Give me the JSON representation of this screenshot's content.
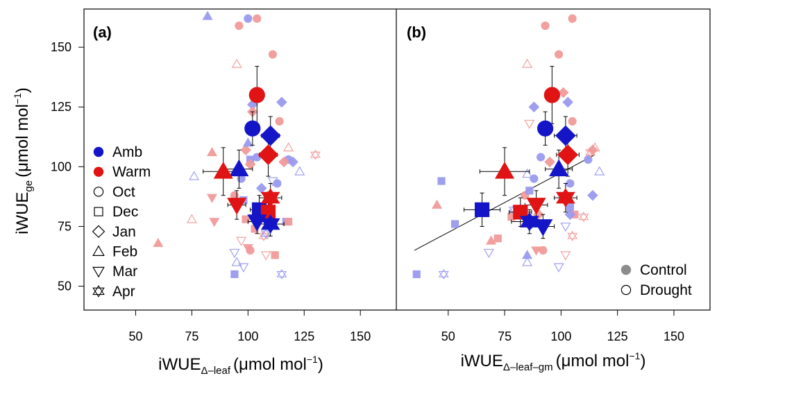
{
  "colors": {
    "amb": "#1515c8",
    "warm": "#e01414",
    "amb_light": "#9a9af0",
    "warm_light": "#f29a9a",
    "axis": "#000000"
  },
  "chart_data": [
    {
      "type": "scatter",
      "panel_label": "(a)",
      "xlabel": "iWUE",
      "xlabel_sub": "Δ–leaf",
      "xlabel_unit": "(μmol mol",
      "xlabel_sup": "−1",
      "xlabel_close": ")",
      "ylabel": "iWUE",
      "ylabel_sub": "ge",
      "ylabel_unit": "(μmol mol",
      "ylabel_sup": "−1",
      "ylabel_close": ")",
      "xlim": [
        27,
        166
      ],
      "ylim": [
        40,
        166
      ],
      "xticks": [
        50,
        75,
        100,
        125,
        150
      ],
      "yticks": [
        50,
        75,
        100,
        125,
        150
      ],
      "legend": {
        "placement": "left",
        "entries": [
          {
            "label": "Amb",
            "shape": "circle",
            "fill": "amb"
          },
          {
            "label": "Warm",
            "shape": "circle",
            "fill": "warm"
          },
          {
            "label": "Oct",
            "shape": "circle",
            "fill": "none"
          },
          {
            "label": "Dec",
            "shape": "square",
            "fill": "none"
          },
          {
            "label": "Jan",
            "shape": "diamond",
            "fill": "none"
          },
          {
            "label": "Feb",
            "shape": "triangle",
            "fill": "none"
          },
          {
            "label": "Mar",
            "shape": "triangle-down",
            "fill": "none"
          },
          {
            "label": "Apr",
            "shape": "star6",
            "fill": "none"
          }
        ]
      },
      "means": [
        {
          "treatment": "Amb",
          "month": "Oct",
          "x": 102,
          "y": 116,
          "xerr": 3,
          "yerr": 7
        },
        {
          "treatment": "Warm",
          "month": "Oct",
          "x": 104,
          "y": 130,
          "xerr": 3,
          "yerr": 12
        },
        {
          "treatment": "Amb",
          "month": "Jan",
          "x": 110,
          "y": 113,
          "xerr": 4,
          "yerr": 8
        },
        {
          "treatment": "Warm",
          "month": "Jan",
          "x": 109,
          "y": 105,
          "xerr": 4,
          "yerr": 9
        },
        {
          "treatment": "Amb",
          "month": "Feb",
          "x": 96,
          "y": 99,
          "xerr": 6,
          "yerr": 8
        },
        {
          "treatment": "Warm",
          "month": "Feb",
          "x": 89,
          "y": 98,
          "xerr": 9,
          "yerr": 10
        },
        {
          "treatment": "Amb",
          "month": "Dec",
          "x": 105,
          "y": 82,
          "xerr": 4,
          "yerr": 6
        },
        {
          "treatment": "Warm",
          "month": "Dec",
          "x": 109,
          "y": 81,
          "xerr": 3,
          "yerr": 6
        },
        {
          "treatment": "Warm",
          "month": "Mar",
          "x": 95,
          "y": 84,
          "xerr": 4,
          "yerr": 6
        },
        {
          "treatment": "Amb",
          "month": "Mar",
          "x": 104,
          "y": 77,
          "xerr": 4,
          "yerr": 5
        },
        {
          "treatment": "Amb",
          "month": "Apr",
          "x": 110,
          "y": 76,
          "xerr": 6,
          "yerr": 5
        },
        {
          "treatment": "Warm",
          "month": "Apr",
          "x": 110,
          "y": 87,
          "xerr": 5,
          "yerr": 6
        }
      ],
      "points": [
        {
          "treatment": "Amb",
          "month": "Oct",
          "x": 100,
          "y": 162
        },
        {
          "treatment": "Warm",
          "month": "Oct",
          "x": 96,
          "y": 159
        },
        {
          "treatment": "Warm",
          "month": "Oct",
          "x": 104,
          "y": 162
        },
        {
          "treatment": "Warm",
          "month": "Oct",
          "x": 111,
          "y": 147
        },
        {
          "treatment": "Warm",
          "month": "Oct",
          "x": 114,
          "y": 119
        },
        {
          "treatment": "Amb",
          "month": "Oct",
          "x": 104,
          "y": 104
        },
        {
          "treatment": "Amb",
          "month": "Oct",
          "x": 118,
          "y": 103
        },
        {
          "treatment": "Warm",
          "month": "Oct",
          "x": 109,
          "y": 88
        },
        {
          "treatment": "Amb",
          "month": "Oct",
          "x": 97,
          "y": 95
        },
        {
          "treatment": "Warm",
          "month": "Oct",
          "x": 101,
          "y": 65
        },
        {
          "treatment": "Warm",
          "month": "Oct",
          "x": 94,
          "y": 88
        },
        {
          "treatment": "Amb",
          "month": "Oct",
          "x": 113,
          "y": 93
        },
        {
          "treatment": "Amb",
          "month": "Dec",
          "x": 94,
          "y": 55
        },
        {
          "treatment": "Amb",
          "month": "Dec",
          "x": 98,
          "y": 86
        },
        {
          "treatment": "Warm",
          "month": "Dec",
          "x": 103,
          "y": 74
        },
        {
          "treatment": "Amb",
          "month": "Dec",
          "x": 117,
          "y": 77
        },
        {
          "treatment": "Warm",
          "month": "Dec",
          "x": 118,
          "y": 77
        },
        {
          "treatment": "Warm",
          "month": "Dec",
          "x": 112,
          "y": 63
        },
        {
          "treatment": "Amb",
          "month": "Dec",
          "x": 101,
          "y": 103
        },
        {
          "treatment": "Warm",
          "month": "Dec",
          "x": 99,
          "y": 78
        },
        {
          "treatment": "Amb",
          "month": "Jan",
          "x": 102,
          "y": 126
        },
        {
          "treatment": "Amb",
          "month": "Jan",
          "x": 115,
          "y": 127
        },
        {
          "treatment": "Warm",
          "month": "Jan",
          "x": 102,
          "y": 123
        },
        {
          "treatment": "Warm",
          "month": "Jan",
          "x": 99,
          "y": 107
        },
        {
          "treatment": "Amb",
          "month": "Jan",
          "x": 120,
          "y": 102
        },
        {
          "treatment": "Warm",
          "month": "Jan",
          "x": 116,
          "y": 102
        },
        {
          "treatment": "Amb",
          "month": "Jan",
          "x": 106,
          "y": 91
        },
        {
          "treatment": "Warm",
          "month": "Jan",
          "x": 101,
          "y": 101
        },
        {
          "treatment": "Amb",
          "month": "Feb",
          "x": 82,
          "y": 163,
          "hollow": false
        },
        {
          "treatment": "Warm",
          "month": "Feb",
          "x": 60,
          "y": 68
        },
        {
          "treatment": "Warm",
          "month": "Feb",
          "x": 84,
          "y": 106
        },
        {
          "treatment": "Amb",
          "month": "Feb",
          "x": 76,
          "y": 96,
          "hollow": true
        },
        {
          "treatment": "Warm",
          "month": "Feb",
          "x": 75,
          "y": 78,
          "hollow": true
        },
        {
          "treatment": "Warm",
          "month": "Feb",
          "x": 95,
          "y": 143,
          "hollow": true
        },
        {
          "treatment": "Amb",
          "month": "Feb",
          "x": 95,
          "y": 60,
          "hollow": true
        },
        {
          "treatment": "Amb",
          "month": "Feb",
          "x": 123,
          "y": 98,
          "hollow": true
        },
        {
          "treatment": "Warm",
          "month": "Feb",
          "x": 118,
          "y": 108,
          "hollow": true
        },
        {
          "treatment": "Amb",
          "month": "Feb",
          "x": 100,
          "y": 110
        },
        {
          "treatment": "Warm",
          "month": "Mar",
          "x": 84,
          "y": 87
        },
        {
          "treatment": "Warm",
          "month": "Mar",
          "x": 85,
          "y": 77
        },
        {
          "treatment": "Amb",
          "month": "Mar",
          "x": 94,
          "y": 64,
          "hollow": true
        },
        {
          "treatment": "Warm",
          "month": "Mar",
          "x": 97,
          "y": 69,
          "hollow": true
        },
        {
          "treatment": "Amb",
          "month": "Mar",
          "x": 98,
          "y": 58,
          "hollow": true
        },
        {
          "treatment": "Warm",
          "month": "Mar",
          "x": 108,
          "y": 63,
          "hollow": true
        },
        {
          "treatment": "Amb",
          "month": "Mar",
          "x": 111,
          "y": 94,
          "hollow": true
        },
        {
          "treatment": "Warm",
          "month": "Mar",
          "x": 100,
          "y": 66
        },
        {
          "treatment": "Warm",
          "month": "Apr",
          "x": 130,
          "y": 105,
          "hollow": true
        },
        {
          "treatment": "Amb",
          "month": "Apr",
          "x": 115,
          "y": 55,
          "hollow": true
        },
        {
          "treatment": "Warm",
          "month": "Apr",
          "x": 107,
          "y": 71,
          "hollow": true
        },
        {
          "treatment": "Amb",
          "month": "Apr",
          "x": 108,
          "y": 72,
          "hollow": true
        }
      ]
    },
    {
      "type": "scatter",
      "panel_label": "(b)",
      "xlabel": "iWUE",
      "xlabel_sub": "Δ–leaf–gm",
      "xlabel_unit": "(μmol mol",
      "xlabel_sup": "−1",
      "xlabel_close": ")",
      "xlim": [
        27,
        166
      ],
      "ylim": [
        40,
        166
      ],
      "xticks": [
        50,
        75,
        100,
        125,
        150
      ],
      "yticks": [],
      "legend": {
        "placement": "bottom-right",
        "entries": [
          {
            "label": "Control",
            "shape": "circle",
            "fill": "grey"
          },
          {
            "label": "Drought",
            "shape": "circle",
            "fill": "none"
          }
        ]
      },
      "fit_line": {
        "x": [
          35,
          115
        ],
        "y": [
          65,
          105
        ]
      },
      "means": [
        {
          "treatment": "Amb",
          "month": "Oct",
          "x": 93,
          "y": 116,
          "xerr": 3,
          "yerr": 7
        },
        {
          "treatment": "Warm",
          "month": "Oct",
          "x": 96,
          "y": 130,
          "xerr": 3,
          "yerr": 12
        },
        {
          "treatment": "Amb",
          "month": "Jan",
          "x": 102,
          "y": 113,
          "xerr": 5,
          "yerr": 8
        },
        {
          "treatment": "Warm",
          "month": "Jan",
          "x": 103,
          "y": 105,
          "xerr": 5,
          "yerr": 9
        },
        {
          "treatment": "Amb",
          "month": "Feb",
          "x": 99,
          "y": 99,
          "xerr": 6,
          "yerr": 8
        },
        {
          "treatment": "Warm",
          "month": "Feb",
          "x": 75,
          "y": 98,
          "xerr": 11,
          "yerr": 10
        },
        {
          "treatment": "Amb",
          "month": "Dec",
          "x": 65,
          "y": 82,
          "xerr": 8,
          "yerr": 7
        },
        {
          "treatment": "Warm",
          "month": "Dec",
          "x": 82,
          "y": 81,
          "xerr": 5,
          "yerr": 6
        },
        {
          "treatment": "Warm",
          "month": "Mar",
          "x": 89,
          "y": 84,
          "xerr": 5,
          "yerr": 6
        },
        {
          "treatment": "Amb",
          "month": "Mar",
          "x": 92,
          "y": 75,
          "xerr": 5,
          "yerr": 5
        },
        {
          "treatment": "Amb",
          "month": "Apr",
          "x": 86,
          "y": 77,
          "xerr": 8,
          "yerr": 5
        },
        {
          "treatment": "Warm",
          "month": "Apr",
          "x": 102,
          "y": 87,
          "xerr": 5,
          "yerr": 6
        }
      ],
      "points": [
        {
          "treatment": "Warm",
          "month": "Oct",
          "x": 93,
          "y": 159
        },
        {
          "treatment": "Warm",
          "month": "Oct",
          "x": 105,
          "y": 162
        },
        {
          "treatment": "Warm",
          "month": "Oct",
          "x": 99,
          "y": 147
        },
        {
          "treatment": "Warm",
          "month": "Oct",
          "x": 105,
          "y": 119
        },
        {
          "treatment": "Amb",
          "month": "Oct",
          "x": 91,
          "y": 104
        },
        {
          "treatment": "Amb",
          "month": "Oct",
          "x": 112,
          "y": 103
        },
        {
          "treatment": "Warm",
          "month": "Oct",
          "x": 84,
          "y": 88
        },
        {
          "treatment": "Warm",
          "month": "Oct",
          "x": 92,
          "y": 65
        },
        {
          "treatment": "Amb",
          "month": "Oct",
          "x": 88,
          "y": 95
        },
        {
          "treatment": "Amb",
          "month": "Oct",
          "x": 104,
          "y": 93
        },
        {
          "treatment": "Amb",
          "month": "Dec",
          "x": 36,
          "y": 55
        },
        {
          "treatment": "Amb",
          "month": "Dec",
          "x": 47,
          "y": 94
        },
        {
          "treatment": "Amb",
          "month": "Dec",
          "x": 53,
          "y": 76
        },
        {
          "treatment": "Warm",
          "month": "Dec",
          "x": 72,
          "y": 70
        },
        {
          "treatment": "Warm",
          "month": "Dec",
          "x": 78,
          "y": 79
        },
        {
          "treatment": "Amb",
          "month": "Dec",
          "x": 104,
          "y": 83
        },
        {
          "treatment": "Warm",
          "month": "Dec",
          "x": 106,
          "y": 80
        },
        {
          "treatment": "Amb",
          "month": "Dec",
          "x": 86,
          "y": 90
        },
        {
          "treatment": "Amb",
          "month": "Jan",
          "x": 88,
          "y": 125
        },
        {
          "treatment": "Amb",
          "month": "Jan",
          "x": 103,
          "y": 127
        },
        {
          "treatment": "Warm",
          "month": "Jan",
          "x": 101,
          "y": 131
        },
        {
          "treatment": "Warm",
          "month": "Jan",
          "x": 95,
          "y": 102
        },
        {
          "treatment": "Amb",
          "month": "Jan",
          "x": 114,
          "y": 88
        },
        {
          "treatment": "Warm",
          "month": "Jan",
          "x": 114,
          "y": 107
        },
        {
          "treatment": "Amb",
          "month": "Jan",
          "x": 104,
          "y": 80
        },
        {
          "treatment": "Warm",
          "month": "Jan",
          "x": 90,
          "y": 80
        },
        {
          "treatment": "Warm",
          "month": "Feb",
          "x": 45,
          "y": 84
        },
        {
          "treatment": "Warm",
          "month": "Feb",
          "x": 69,
          "y": 69
        },
        {
          "treatment": "Amb",
          "month": "Feb",
          "x": 85,
          "y": 60,
          "hollow": true
        },
        {
          "treatment": "Warm",
          "month": "Feb",
          "x": 85,
          "y": 143,
          "hollow": true
        },
        {
          "treatment": "Amb",
          "month": "Feb",
          "x": 117,
          "y": 98,
          "hollow": true
        },
        {
          "treatment": "Warm",
          "month": "Feb",
          "x": 115,
          "y": 108,
          "hollow": true
        },
        {
          "treatment": "Amb",
          "month": "Feb",
          "x": 85,
          "y": 97,
          "hollow": true
        },
        {
          "treatment": "Amb",
          "month": "Feb",
          "x": 85,
          "y": 63
        },
        {
          "treatment": "Amb",
          "month": "Mar",
          "x": 68,
          "y": 64,
          "hollow": true
        },
        {
          "treatment": "Warm",
          "month": "Mar",
          "x": 86,
          "y": 118,
          "hollow": true
        },
        {
          "treatment": "Amb",
          "month": "Mar",
          "x": 99,
          "y": 58,
          "hollow": true
        },
        {
          "treatment": "Warm",
          "month": "Mar",
          "x": 102,
          "y": 63,
          "hollow": true
        },
        {
          "treatment": "Amb",
          "month": "Mar",
          "x": 102,
          "y": 75,
          "hollow": true
        },
        {
          "treatment": "Warm",
          "month": "Mar",
          "x": 89,
          "y": 65
        },
        {
          "treatment": "Warm",
          "month": "Apr",
          "x": 113,
          "y": 106,
          "hollow": true
        },
        {
          "treatment": "Amb",
          "month": "Apr",
          "x": 48,
          "y": 55,
          "hollow": true
        },
        {
          "treatment": "Warm",
          "month": "Apr",
          "x": 105,
          "y": 71,
          "hollow": true
        },
        {
          "treatment": "Warm",
          "month": "Apr",
          "x": 110,
          "y": 79,
          "hollow": true
        },
        {
          "treatment": "Amb",
          "month": "Apr",
          "x": 79,
          "y": 82,
          "hollow": true
        }
      ]
    }
  ]
}
